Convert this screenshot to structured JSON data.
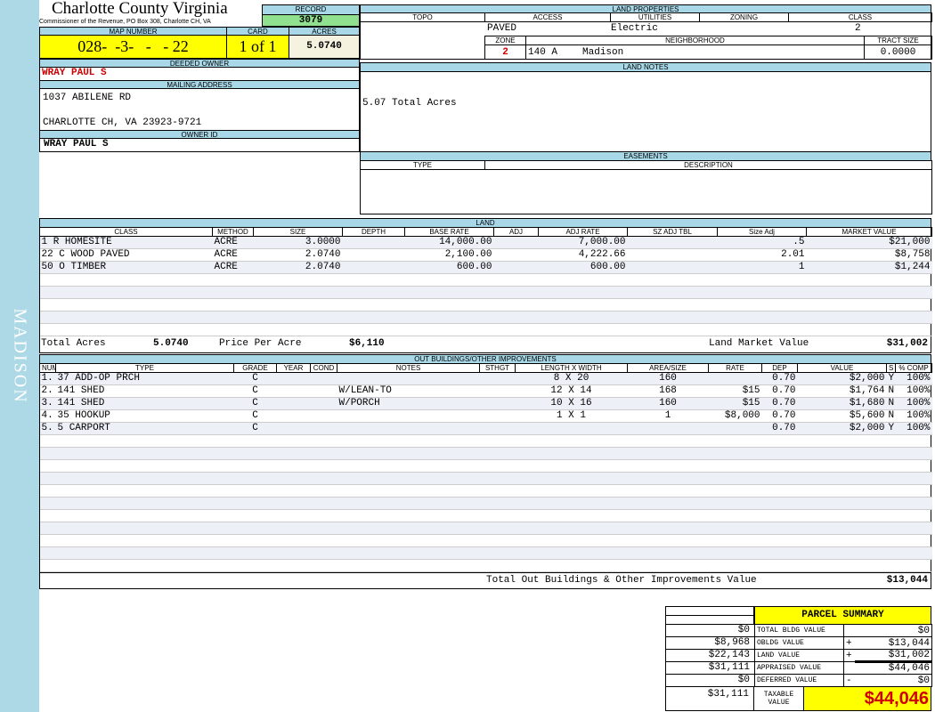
{
  "sidebar": {
    "label": "MADISON"
  },
  "header": {
    "county": "Charlotte County Virginia",
    "address": "Commissioner of the Revenue, PO Box 308, Charlotte CH, VA",
    "record_label": "RECORD",
    "record": "3079"
  },
  "parcel": {
    "map_number_label": "MAP NUMBER",
    "map_number": "028-  -3-   -   - 22",
    "card_label": "CARD",
    "card": "1 of 1",
    "acres_label": "ACRES",
    "acres": "5.0740"
  },
  "owner": {
    "deeded_label": "DEEDED OWNER",
    "deeded": "WRAY PAUL S",
    "mailing_label": "MAILING ADDRESS",
    "address1": "1037 ABILENE RD",
    "address2": "CHARLOTTE CH, VA 23923-9721",
    "owner_id_label": "OWNER ID",
    "owner_id": "WRAY PAUL S"
  },
  "land_properties": {
    "title": "LAND PROPERTIES",
    "topo_label": "TOPO",
    "access_label": "ACCESS",
    "utilities_label": "UTILITIES",
    "zoning_label": "ZONING",
    "class_label": "CLASS",
    "access": "PAVED",
    "utilities": "Electric",
    "class": "2",
    "zone_label": "ZONE",
    "neighborhood_label": "NEIGHBORHOOD",
    "tract_label": "TRACT SIZE",
    "zone": "2",
    "neighborhood_code": "140 A",
    "neighborhood": "Madison",
    "tract_size": "0.0000"
  },
  "land_notes": {
    "title": "LAND NOTES",
    "text": "5.07 Total Acres"
  },
  "easements": {
    "title": "EASEMENTS",
    "type_label": "TYPE",
    "description_label": "DESCRIPTION"
  },
  "land": {
    "title": "LAND",
    "columns": [
      "CLASS",
      "METHOD",
      "SIZE",
      "DEPTH",
      "BASE RATE",
      "ADJ",
      "ADJ RATE",
      "SZ ADJ TBL",
      "Size Adj",
      "MARKET VALUE"
    ],
    "rows": [
      [
        "1 R HOMESITE",
        "ACRE",
        "3.0000",
        "",
        "14,000.00",
        "",
        "7,000.00",
        "",
        ".5",
        "$21,000"
      ],
      [
        "22 C WOOD PAVED",
        "ACRE",
        "2.0740",
        "",
        "2,100.00",
        "",
        "4,222.66",
        "",
        "2.01",
        "$8,758"
      ],
      [
        "50 O TIMBER",
        "ACRE",
        "2.0740",
        "",
        "600.00",
        "",
        "600.00",
        "",
        "1",
        "$1,244"
      ]
    ],
    "total_acres_label": "Total Acres",
    "total_acres": "5.0740",
    "price_per_acre_label": "Price Per Acre",
    "price_per_acre": "$6,110",
    "market_label": "Land Market Value",
    "market_value": "$31,002"
  },
  "outbuildings": {
    "title": "OUT BUILDINGS/OTHER IMPROVEMENTS",
    "columns": [
      "NUM",
      "TYPE",
      "GRADE",
      "YEAR",
      "COND",
      "NOTES",
      "STHGT",
      "LENGTH X WIDTH",
      "AREA/SIZE",
      "RATE",
      "DEP",
      "VALUE",
      "S",
      "% COMP"
    ],
    "rows": [
      [
        "1.",
        "37 ADD-OP PRCH",
        "C",
        "",
        "",
        "",
        "",
        "8 X 20",
        "160",
        "",
        "0.70",
        "$2,000",
        "Y",
        "100%"
      ],
      [
        "2.",
        "141 SHED",
        "C",
        "",
        "",
        "W/LEAN-TO",
        "",
        "12 X 14",
        "168",
        "$15",
        "0.70",
        "$1,764",
        "N",
        "100%"
      ],
      [
        "3.",
        "141 SHED",
        "C",
        "",
        "",
        "W/PORCH",
        "",
        "10 X 16",
        "160",
        "$15",
        "0.70",
        "$1,680",
        "N",
        "100%"
      ],
      [
        "4.",
        "35 HOOKUP",
        "C",
        "",
        "",
        "",
        "",
        "1 X 1",
        "1",
        "$8,000",
        "0.70",
        "$5,600",
        "N",
        "100%"
      ],
      [
        "5.",
        "5 CARPORT",
        "C",
        "",
        "",
        "",
        "",
        "",
        "",
        "",
        "0.70",
        "$2,000",
        "Y",
        "100%"
      ]
    ],
    "total_label": "Total Out Buildings & Other Improvements Value",
    "total": "$13,044"
  },
  "summary": {
    "title": "PARCEL SUMMARY",
    "rows": [
      {
        "left": "$0",
        "label": "TOTAL BLDG VALUE",
        "op": "",
        "value": "$0"
      },
      {
        "left": "$8,968",
        "label": "OBLDG VALUE",
        "op": "+",
        "value": "$13,044"
      },
      {
        "left": "$22,143",
        "label": "LAND VALUE",
        "op": "+",
        "value": "$31,002"
      },
      {
        "left": "$31,111",
        "label": "APPRAISED VALUE",
        "op": "",
        "value": "$44,046"
      },
      {
        "left": "$0",
        "label": "DEFERRED VALUE",
        "op": "-",
        "value": "$0"
      }
    ],
    "taxable_left": "$31,111",
    "taxable_label": "TAXABLE VALUE",
    "taxable": "$44,046"
  },
  "colors": {
    "header_bg": "#a8d8e8",
    "highlight": "#ffff00",
    "record_bg": "#90e090",
    "owner_red": "#d00000"
  }
}
